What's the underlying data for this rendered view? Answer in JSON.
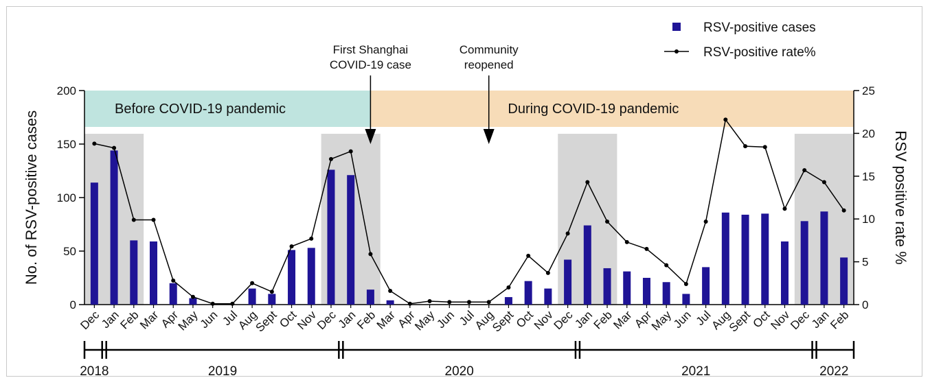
{
  "chart_data": {
    "type": "bar",
    "categories": [
      "Dec",
      "Jan",
      "Feb",
      "Mar",
      "Apr",
      "May",
      "Jun",
      "Jul",
      "Aug",
      "Sept",
      "Oct",
      "Nov",
      "Dec",
      "Jan",
      "Feb",
      "Mar",
      "Apr",
      "May",
      "Jun",
      "Jul",
      "Aug",
      "Sept",
      "Oct",
      "Nov",
      "Dec",
      "Jan",
      "Feb",
      "Mar",
      "Apr",
      "May",
      "Jun",
      "Jul",
      "Aug",
      "Sept",
      "Oct",
      "Nov",
      "Dec",
      "Jan",
      "Feb"
    ],
    "series": [
      {
        "name": "RSV-positive cases",
        "kind": "bar",
        "axis": "left",
        "color": "#1f1496",
        "values": [
          114,
          144,
          60,
          59,
          20,
          6,
          0,
          0,
          15,
          10,
          51,
          53,
          126,
          121,
          14,
          4,
          0,
          0,
          0,
          0,
          0,
          7,
          22,
          15,
          42,
          74,
          34,
          31,
          25,
          21,
          10,
          35,
          86,
          84,
          85,
          59,
          78,
          87,
          44
        ]
      },
      {
        "name": "RSV-positive rate%",
        "kind": "line",
        "axis": "right",
        "color": "#000000",
        "values": [
          18.8,
          18.3,
          9.9,
          9.9,
          2.8,
          0.9,
          0.1,
          0.1,
          2.5,
          1.5,
          6.8,
          7.7,
          17.0,
          17.9,
          5.9,
          1.6,
          0.1,
          0.4,
          0.3,
          0.3,
          0.3,
          2.0,
          5.7,
          3.7,
          8.3,
          14.3,
          9.7,
          7.3,
          6.5,
          4.6,
          2.4,
          9.7,
          21.6,
          18.5,
          18.4,
          11.2,
          15.7,
          14.3,
          11.0
        ]
      }
    ],
    "ylabel": "No. of RSV-positive cases",
    "ylim": [
      0,
      200
    ],
    "yticks": [
      0,
      50,
      100,
      150,
      200
    ],
    "y2label": "RSV positive rate %",
    "y2lim": [
      0,
      25
    ],
    "y2ticks": [
      0,
      5,
      10,
      15,
      20,
      25
    ],
    "legend_position": "top-right",
    "shaded_periods": [
      [
        0,
        2
      ],
      [
        12,
        14
      ],
      [
        24,
        26
      ],
      [
        36,
        38
      ]
    ],
    "banners": [
      {
        "label": "Before COVID-19 pandemic",
        "start": 0,
        "end": 14.5,
        "color": "#bfe4df"
      },
      {
        "label": "During COVID-19 pandemic",
        "start": 14.5,
        "end": 38,
        "color": "#f7dcb8"
      }
    ],
    "annotations": [
      {
        "lines": [
          "First Shanghai",
          "COVID-19 case"
        ],
        "at": 14.5
      },
      {
        "lines": [
          "Community",
          "reopened"
        ],
        "at": 20.5
      }
    ],
    "years": [
      {
        "label": "2018",
        "start": 0,
        "end": 0
      },
      {
        "label": "2019",
        "start": 1,
        "end": 12
      },
      {
        "label": "2020",
        "start": 13,
        "end": 24
      },
      {
        "label": "2021",
        "start": 25,
        "end": 36
      },
      {
        "label": "2022",
        "start": 37,
        "end": 38
      }
    ]
  }
}
